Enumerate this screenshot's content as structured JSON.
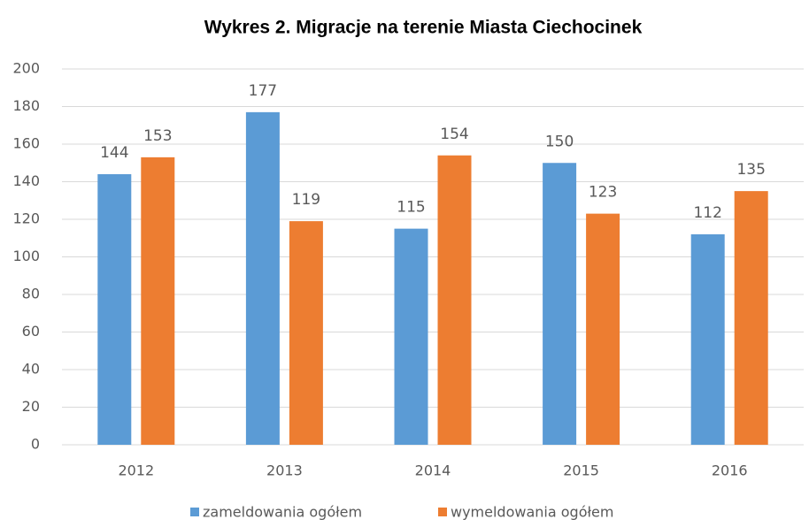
{
  "chart_data": {
    "type": "bar",
    "title": "Wykres 2. Migracje na terenie Miasta Ciechocinek",
    "categories": [
      "2012",
      "2013",
      "2014",
      "2015",
      "2016"
    ],
    "series": [
      {
        "name": "zameldowania ogółem",
        "color": "#5b9bd5",
        "values": [
          144,
          177,
          115,
          150,
          112
        ]
      },
      {
        "name": "wymeldowania ogółem",
        "color": "#ed7d31",
        "values": [
          153,
          119,
          154,
          123,
          135
        ]
      }
    ],
    "ylim": [
      0,
      200
    ],
    "yticks": [
      0,
      20,
      40,
      60,
      80,
      100,
      120,
      140,
      160,
      180,
      200
    ],
    "grid": true,
    "legend": "bottom"
  }
}
